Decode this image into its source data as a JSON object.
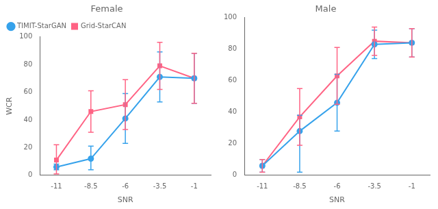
{
  "chart_data": [
    {
      "type": "line",
      "title": "Female",
      "xlabel": "SNR",
      "ylabel": "WCR",
      "x": [
        -11,
        -8.5,
        -6,
        -3.5,
        -1
      ],
      "series": [
        {
          "name": "TIMIT-StarGAN",
          "marker": "circle",
          "values": [
            6,
            12,
            41,
            71,
            70
          ],
          "error_lo": [
            2,
            8,
            18,
            18,
            18
          ],
          "error_hi": [
            2,
            9,
            18,
            18,
            18
          ]
        },
        {
          "name": "Grid-StarCAN",
          "marker": "square",
          "values": [
            11,
            46,
            51,
            79,
            70
          ],
          "error_lo": [
            10,
            15,
            18,
            17,
            18
          ],
          "error_hi": [
            11,
            15,
            18,
            17,
            18
          ]
        }
      ],
      "xlim": [
        -12.2,
        0.2
      ],
      "xticks": [
        -11,
        -8.5,
        -6,
        -3.5,
        -1
      ],
      "ylim": [
        0,
        100
      ],
      "yticks": [
        0,
        20,
        40,
        60,
        80,
        100
      ],
      "grid": false,
      "legend": "upper left"
    },
    {
      "type": "line",
      "title": "Male",
      "xlabel": "SNR",
      "x": [
        -11,
        -8.5,
        -6,
        -3.5,
        -1
      ],
      "series": [
        {
          "name": "TIMIT-StarGAN",
          "marker": "circle",
          "values": [
            6,
            28,
            46,
            83,
            84
          ],
          "error_lo": [
            4,
            26,
            18,
            9,
            9
          ],
          "error_hi": [
            4,
            10,
            18,
            9,
            9
          ]
        },
        {
          "name": "Grid-StarCAN",
          "marker": "square",
          "values": [
            6,
            37,
            63,
            85,
            84
          ],
          "error_lo": [
            4,
            18,
            18,
            9,
            9
          ],
          "error_hi": [
            4,
            18,
            18,
            9,
            9
          ]
        }
      ],
      "xlim": [
        -12.2,
        0.2
      ],
      "xticks": [
        -11,
        -8.5,
        -6,
        -3.5,
        -1
      ],
      "ylim": [
        0,
        100
      ],
      "yticks": [
        0,
        20,
        40,
        60,
        80,
        100
      ],
      "grid": false
    }
  ]
}
